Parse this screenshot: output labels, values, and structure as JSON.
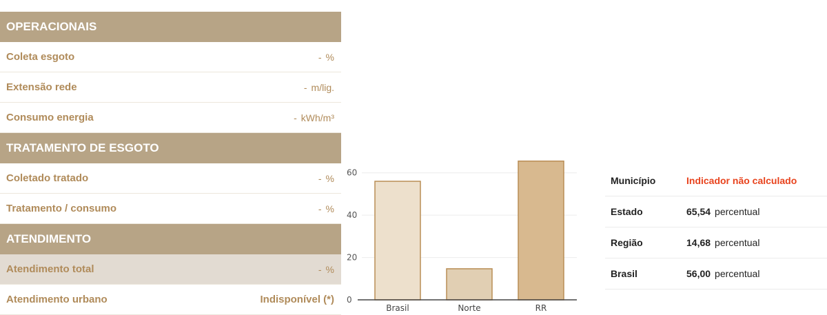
{
  "operacionais": {
    "title": "OPERACIONAIS",
    "rows": [
      {
        "label": "Coleta esgoto",
        "value": "-",
        "unit": "%"
      },
      {
        "label": "Extensão rede",
        "value": "-",
        "unit": "m/lig."
      },
      {
        "label": "Consumo energia",
        "value": "-",
        "unit": "kWh/m³"
      }
    ]
  },
  "tratamento": {
    "title": "TRATAMENTO DE ESGOTO",
    "rows": [
      {
        "label": "Coletado tratado",
        "value": "-",
        "unit": "%"
      },
      {
        "label": "Tratamento / consumo",
        "value": "-",
        "unit": "%"
      }
    ]
  },
  "atendimento": {
    "title": "ATENDIMENTO",
    "rows": [
      {
        "label": "Atendimento total",
        "value": "-",
        "unit": "%"
      },
      {
        "label": "Atendimento urbano",
        "value": "Indisponível (*)"
      }
    ]
  },
  "comparison": {
    "rows": [
      {
        "label": "Município",
        "text": "Indicador não calculado"
      },
      {
        "label": "Estado",
        "value": "65,54",
        "unit": "percentual"
      },
      {
        "label": "Região",
        "value": "14,68",
        "unit": "percentual"
      },
      {
        "label": "Brasil",
        "value": "56,00",
        "unit": "percentual"
      }
    ]
  },
  "chart_data": {
    "type": "bar",
    "categories": [
      "Brasil",
      "Norte",
      "RR"
    ],
    "values": [
      56.0,
      14.68,
      65.54
    ],
    "ylim": [
      0,
      70
    ],
    "yticks": [
      "0",
      "20",
      "40",
      "60"
    ],
    "grid": true,
    "colors": [
      "#ede0cc",
      "#e1cfb3",
      "#d8b98f"
    ],
    "edge_color": "#b98d55"
  }
}
